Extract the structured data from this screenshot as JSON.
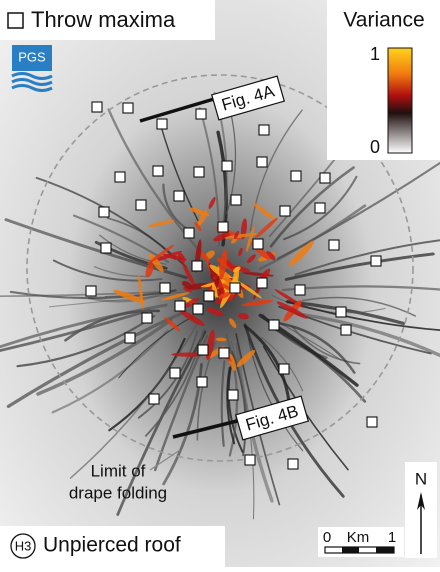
{
  "legend": {
    "marker_label": "Throw maxima"
  },
  "logo": {
    "text": "PGS"
  },
  "colorbar": {
    "title": "Variance",
    "max_label": "1",
    "min_label": "0"
  },
  "annotations": {
    "fig_a": "Fig. 4A",
    "fig_b": "Fig. 4B",
    "limit_line1": "Limit of",
    "limit_line2": "drape folding"
  },
  "north": {
    "label": "N"
  },
  "scale_bar": {
    "start": "0",
    "unit": "Km",
    "end": "1"
  },
  "horizon": {
    "badge": "H3",
    "label": "Unpierced roof"
  }
}
